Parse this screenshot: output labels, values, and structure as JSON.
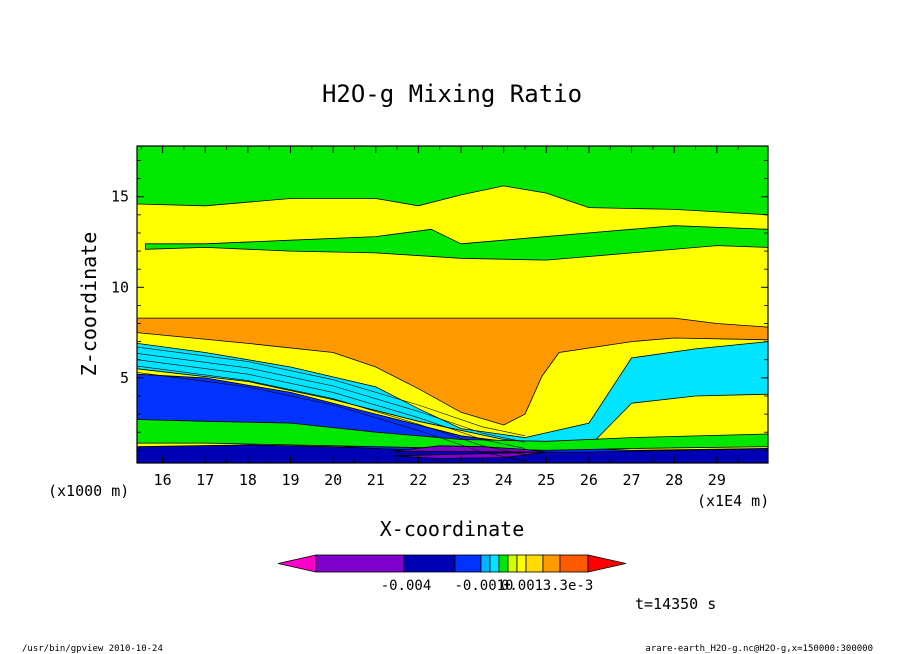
{
  "chart_data": {
    "type": "contour",
    "title": "H2O-g Mixing Ratio",
    "xlabel": "X-coordinate",
    "ylabel": "Z-coordinate",
    "x_unit_label": "(x1E4 m)",
    "y_unit_label": "(x1000 m)",
    "xlim": [
      15.4,
      30.2
    ],
    "ylim": [
      0.3,
      17.8
    ],
    "x_ticks": [
      16,
      17,
      18,
      19,
      20,
      21,
      22,
      23,
      24,
      25,
      26,
      27,
      28,
      29
    ],
    "y_ticks": [
      5,
      10,
      15
    ],
    "layers": [
      {
        "name": "upper-green-band",
        "color": "#00e800",
        "top": [
          [
            15.4,
            17.8
          ],
          [
            30.2,
            17.8
          ]
        ],
        "bottom": [
          [
            15.4,
            14.6
          ],
          [
            17,
            14.5
          ],
          [
            19,
            14.9
          ],
          [
            21,
            14.9
          ],
          [
            22,
            14.5
          ],
          [
            23,
            15.1
          ],
          [
            24,
            15.6
          ],
          [
            25,
            15.2
          ],
          [
            26,
            14.4
          ],
          [
            28,
            14.3
          ],
          [
            30.2,
            14.0
          ]
        ]
      },
      {
        "name": "mid-green-band",
        "color": "#00e800",
        "top": [
          [
            15.6,
            12.4
          ],
          [
            17,
            12.4
          ],
          [
            19,
            12.6
          ],
          [
            21,
            12.8
          ],
          [
            22.3,
            13.2
          ],
          [
            23,
            12.4
          ],
          [
            26,
            13.0
          ],
          [
            28,
            13.4
          ],
          [
            30.2,
            13.2
          ]
        ],
        "bottom": [
          [
            15.6,
            12.1
          ],
          [
            17,
            12.2
          ],
          [
            19,
            12.0
          ],
          [
            21,
            11.9
          ],
          [
            23,
            11.6
          ],
          [
            25,
            11.5
          ],
          [
            27,
            11.9
          ],
          [
            29,
            12.3
          ],
          [
            30.2,
            12.2
          ]
        ]
      },
      {
        "name": "orange-layer",
        "color": "#ff9900",
        "top": [
          [
            15.4,
            8.3
          ],
          [
            28,
            8.3
          ],
          [
            29,
            8.0
          ],
          [
            30.2,
            7.8
          ]
        ],
        "bottom": [
          [
            15.4,
            7.5
          ],
          [
            18,
            6.9
          ],
          [
            20,
            6.4
          ],
          [
            21,
            5.6
          ],
          [
            22,
            4.4
          ],
          [
            23,
            3.1
          ],
          [
            24,
            2.4
          ],
          [
            24.5,
            3.0
          ],
          [
            24.9,
            5.1
          ],
          [
            25.3,
            6.4
          ],
          [
            27,
            7.0
          ],
          [
            28,
            7.2
          ],
          [
            30.2,
            7.1
          ]
        ]
      },
      {
        "name": "cyan-band",
        "color": "#00e5ff",
        "top": [
          [
            15.4,
            6.9
          ],
          [
            17,
            6.4
          ],
          [
            19,
            5.6
          ],
          [
            21,
            4.5
          ],
          [
            22,
            3.3
          ],
          [
            23,
            2.2
          ],
          [
            24.5,
            1.7
          ],
          [
            26,
            2.5
          ],
          [
            27,
            6.1
          ],
          [
            28.5,
            6.6
          ],
          [
            30.2,
            7.0
          ]
        ],
        "bottom": [
          [
            15.4,
            5.5
          ],
          [
            18,
            4.8
          ],
          [
            20,
            3.8
          ],
          [
            22,
            2.6
          ],
          [
            24,
            1.6
          ],
          [
            26,
            1.2
          ],
          [
            27,
            3.6
          ],
          [
            28.5,
            4.0
          ],
          [
            30.2,
            4.1
          ]
        ]
      },
      {
        "name": "blue-band",
        "color": "#0033ff",
        "top": [
          [
            15.4,
            5.2
          ],
          [
            17,
            5.0
          ],
          [
            19,
            4.2
          ],
          [
            21,
            3.0
          ],
          [
            23,
            1.8
          ],
          [
            25,
            1.2
          ],
          [
            27,
            1.0
          ],
          [
            30.2,
            1.1
          ]
        ],
        "bottom": [
          [
            15.4,
            2.6
          ],
          [
            17,
            2.3
          ],
          [
            19,
            1.6
          ],
          [
            21,
            1.0
          ],
          [
            23,
            0.8
          ],
          [
            25,
            0.7
          ],
          [
            27,
            0.7
          ],
          [
            30.2,
            0.8
          ]
        ]
      },
      {
        "name": "lower-green-band",
        "color": "#00e800",
        "top": [
          [
            15.4,
            2.7
          ],
          [
            17,
            2.6
          ],
          [
            19,
            2.5
          ],
          [
            21,
            2.0
          ],
          [
            23,
            1.6
          ],
          [
            25,
            1.5
          ],
          [
            27,
            1.7
          ],
          [
            30.2,
            1.9
          ]
        ],
        "bottom": [
          [
            15.4,
            1.4
          ],
          [
            17,
            1.4
          ],
          [
            19,
            1.3
          ],
          [
            21,
            1.2
          ],
          [
            23,
            1.1
          ],
          [
            25,
            1.0
          ],
          [
            27,
            1.1
          ],
          [
            30.2,
            1.2
          ]
        ]
      },
      {
        "name": "navy-surface-band",
        "color": "#0000b4",
        "top": [
          [
            15.4,
            1.2
          ],
          [
            18,
            1.3
          ],
          [
            20,
            1.2
          ],
          [
            22,
            1.0
          ],
          [
            24,
            0.9
          ],
          [
            26,
            0.9
          ],
          [
            28,
            1.0
          ],
          [
            30.2,
            1.1
          ]
        ],
        "bottom": [
          [
            15.4,
            0.3
          ],
          [
            30.2,
            0.3
          ]
        ]
      },
      {
        "name": "purple-surface-patch",
        "color": "#7f00cc",
        "top": [
          [
            21.4,
            0.95
          ],
          [
            22.5,
            1.25
          ],
          [
            23.5,
            1.2
          ],
          [
            24.5,
            1.05
          ],
          [
            25,
            0.9
          ]
        ],
        "bottom": [
          [
            25,
            0.9
          ],
          [
            24,
            0.6
          ],
          [
            22.5,
            0.55
          ],
          [
            21.4,
            0.7
          ]
        ]
      }
    ],
    "colorbar": {
      "colors": [
        "#ff00cc",
        "#7f00cc",
        "#0000b4",
        "#0033ff",
        "#00b4ff",
        "#00e5ff",
        "#00e800",
        "#d2ff00",
        "#ffff00",
        "#ffdc00",
        "#ff9900",
        "#ff5a00",
        "#ff0000"
      ],
      "tick_labels": [
        "-0.004",
        "-0.0010",
        "0.001",
        "3.3e-3"
      ]
    },
    "time_label": "t=14350 s"
  },
  "footer": {
    "left": "/usr/bin/gpview  2010-10-24",
    "right": "arare-earth_H2O-g.nc@H2O-g,x=150000:300000"
  }
}
